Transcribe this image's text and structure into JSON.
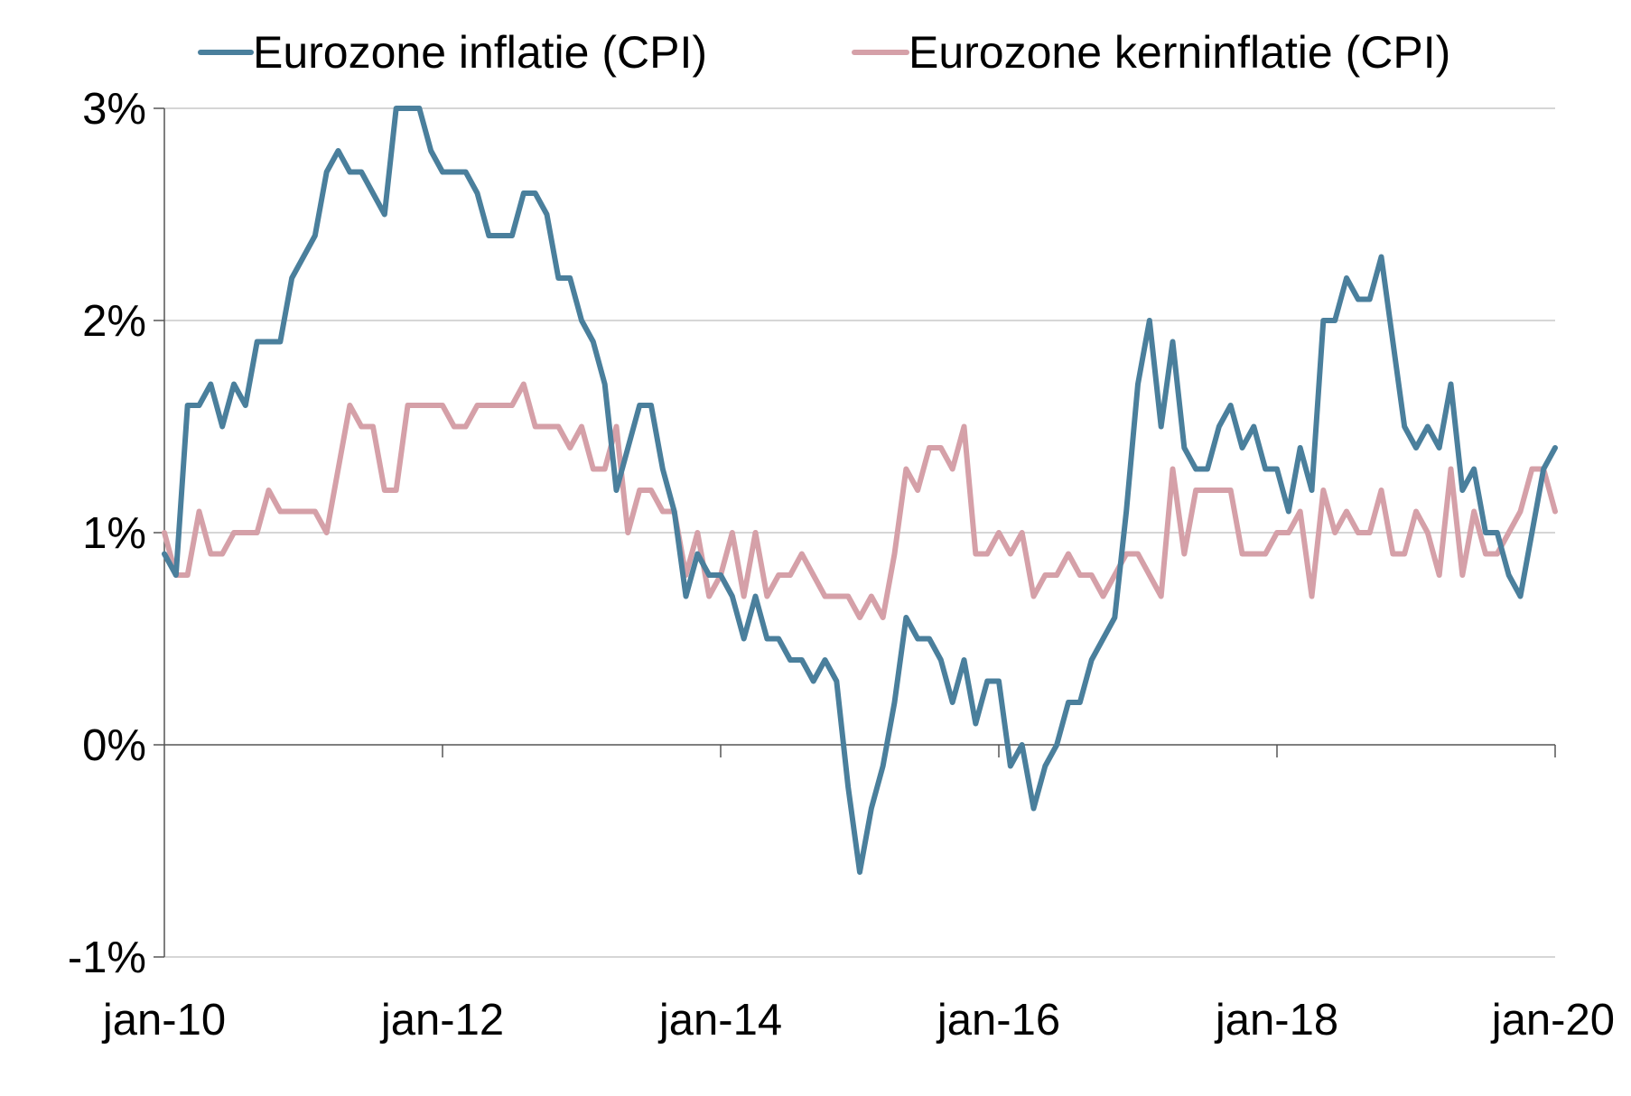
{
  "chart_data": {
    "type": "line",
    "title": "",
    "xlabel": "",
    "ylabel": "",
    "ylim": [
      -1,
      3
    ],
    "y_ticks": [
      {
        "value": 3,
        "label": "3%"
      },
      {
        "value": 2,
        "label": "2%"
      },
      {
        "value": 1,
        "label": "1%"
      },
      {
        "value": 0,
        "label": "0%"
      },
      {
        "value": -1,
        "label": "-1%"
      }
    ],
    "x_range": [
      "2010-01",
      "2020-01"
    ],
    "x_ticks": [
      {
        "value": "2010-01",
        "label": "jan-10"
      },
      {
        "value": "2012-01",
        "label": "jan-12"
      },
      {
        "value": "2014-01",
        "label": "jan-14"
      },
      {
        "value": "2016-01",
        "label": "jan-16"
      },
      {
        "value": "2018-01",
        "label": "jan-18"
      },
      {
        "value": "2020-01",
        "label": "jan-20"
      }
    ],
    "grid": "horizontal",
    "legend_position": "top",
    "series": [
      {
        "name": "Eurozone inflatie (CPI)",
        "color": "#4a7f9c",
        "points": [
          [
            "2010-01",
            0.9
          ],
          [
            "2010-02",
            0.8
          ],
          [
            "2010-03",
            1.6
          ],
          [
            "2010-04",
            1.6
          ],
          [
            "2010-05",
            1.7
          ],
          [
            "2010-06",
            1.5
          ],
          [
            "2010-07",
            1.7
          ],
          [
            "2010-08",
            1.6
          ],
          [
            "2010-09",
            1.9
          ],
          [
            "2010-10",
            1.9
          ],
          [
            "2010-11",
            1.9
          ],
          [
            "2010-12",
            2.2
          ],
          [
            "2011-01",
            2.3
          ],
          [
            "2011-02",
            2.4
          ],
          [
            "2011-03",
            2.7
          ],
          [
            "2011-04",
            2.8
          ],
          [
            "2011-05",
            2.7
          ],
          [
            "2011-06",
            2.7
          ],
          [
            "2011-07",
            2.6
          ],
          [
            "2011-08",
            2.5
          ],
          [
            "2011-09",
            3.0
          ],
          [
            "2011-10",
            3.0
          ],
          [
            "2011-11",
            3.0
          ],
          [
            "2011-12",
            2.8
          ],
          [
            "2012-01",
            2.7
          ],
          [
            "2012-02",
            2.7
          ],
          [
            "2012-03",
            2.7
          ],
          [
            "2012-04",
            2.6
          ],
          [
            "2012-05",
            2.4
          ],
          [
            "2012-06",
            2.4
          ],
          [
            "2012-07",
            2.4
          ],
          [
            "2012-08",
            2.6
          ],
          [
            "2012-09",
            2.6
          ],
          [
            "2012-10",
            2.5
          ],
          [
            "2012-11",
            2.2
          ],
          [
            "2012-12",
            2.2
          ],
          [
            "2013-01",
            2.0
          ],
          [
            "2013-02",
            1.9
          ],
          [
            "2013-03",
            1.7
          ],
          [
            "2013-04",
            1.2
          ],
          [
            "2013-05",
            1.4
          ],
          [
            "2013-06",
            1.6
          ],
          [
            "2013-07",
            1.6
          ],
          [
            "2013-08",
            1.3
          ],
          [
            "2013-09",
            1.1
          ],
          [
            "2013-10",
            0.7
          ],
          [
            "2013-11",
            0.9
          ],
          [
            "2013-12",
            0.8
          ],
          [
            "2014-01",
            0.8
          ],
          [
            "2014-02",
            0.7
          ],
          [
            "2014-03",
            0.5
          ],
          [
            "2014-04",
            0.7
          ],
          [
            "2014-05",
            0.5
          ],
          [
            "2014-06",
            0.5
          ],
          [
            "2014-07",
            0.4
          ],
          [
            "2014-08",
            0.4
          ],
          [
            "2014-09",
            0.3
          ],
          [
            "2014-10",
            0.4
          ],
          [
            "2014-11",
            0.3
          ],
          [
            "2014-12",
            -0.2
          ],
          [
            "2015-01",
            -0.6
          ],
          [
            "2015-02",
            -0.3
          ],
          [
            "2015-03",
            -0.1
          ],
          [
            "2015-04",
            0.2
          ],
          [
            "2015-05",
            0.6
          ],
          [
            "2015-06",
            0.5
          ],
          [
            "2015-07",
            0.5
          ],
          [
            "2015-08",
            0.4
          ],
          [
            "2015-09",
            0.2
          ],
          [
            "2015-10",
            0.4
          ],
          [
            "2015-11",
            0.1
          ],
          [
            "2015-12",
            0.3
          ],
          [
            "2016-01",
            0.3
          ],
          [
            "2016-02",
            -0.1
          ],
          [
            "2016-03",
            0.0
          ],
          [
            "2016-04",
            -0.3
          ],
          [
            "2016-05",
            -0.1
          ],
          [
            "2016-06",
            0.0
          ],
          [
            "2016-07",
            0.2
          ],
          [
            "2016-08",
            0.2
          ],
          [
            "2016-09",
            0.4
          ],
          [
            "2016-10",
            0.5
          ],
          [
            "2016-11",
            0.6
          ],
          [
            "2016-12",
            1.1
          ],
          [
            "2017-01",
            1.7
          ],
          [
            "2017-02",
            2.0
          ],
          [
            "2017-03",
            1.5
          ],
          [
            "2017-04",
            1.9
          ],
          [
            "2017-05",
            1.4
          ],
          [
            "2017-06",
            1.3
          ],
          [
            "2017-07",
            1.3
          ],
          [
            "2017-08",
            1.5
          ],
          [
            "2017-09",
            1.6
          ],
          [
            "2017-10",
            1.4
          ],
          [
            "2017-11",
            1.5
          ],
          [
            "2017-12",
            1.3
          ],
          [
            "2018-01",
            1.3
          ],
          [
            "2018-02",
            1.1
          ],
          [
            "2018-03",
            1.4
          ],
          [
            "2018-04",
            1.2
          ],
          [
            "2018-05",
            2.0
          ],
          [
            "2018-06",
            2.0
          ],
          [
            "2018-07",
            2.2
          ],
          [
            "2018-08",
            2.1
          ],
          [
            "2018-09",
            2.1
          ],
          [
            "2018-10",
            2.3
          ],
          [
            "2018-11",
            1.9
          ],
          [
            "2018-12",
            1.5
          ],
          [
            "2019-01",
            1.4
          ],
          [
            "2019-02",
            1.5
          ],
          [
            "2019-03",
            1.4
          ],
          [
            "2019-04",
            1.7
          ],
          [
            "2019-05",
            1.2
          ],
          [
            "2019-06",
            1.3
          ],
          [
            "2019-07",
            1.0
          ],
          [
            "2019-08",
            1.0
          ],
          [
            "2019-09",
            0.8
          ],
          [
            "2019-10",
            0.7
          ],
          [
            "2019-11",
            1.0
          ],
          [
            "2019-12",
            1.3
          ],
          [
            "2020-01",
            1.4
          ]
        ]
      },
      {
        "name": "Eurozone kerninflatie (CPI)",
        "color": "#d5a0a8",
        "points": [
          [
            "2010-01",
            1.0
          ],
          [
            "2010-02",
            0.8
          ],
          [
            "2010-03",
            0.8
          ],
          [
            "2010-04",
            1.1
          ],
          [
            "2010-05",
            0.9
          ],
          [
            "2010-06",
            0.9
          ],
          [
            "2010-07",
            1.0
          ],
          [
            "2010-08",
            1.0
          ],
          [
            "2010-09",
            1.0
          ],
          [
            "2010-10",
            1.2
          ],
          [
            "2010-11",
            1.1
          ],
          [
            "2010-12",
            1.1
          ],
          [
            "2011-01",
            1.1
          ],
          [
            "2011-02",
            1.1
          ],
          [
            "2011-03",
            1.0
          ],
          [
            "2011-04",
            1.3
          ],
          [
            "2011-05",
            1.6
          ],
          [
            "2011-06",
            1.5
          ],
          [
            "2011-07",
            1.5
          ],
          [
            "2011-08",
            1.2
          ],
          [
            "2011-09",
            1.2
          ],
          [
            "2011-10",
            1.6
          ],
          [
            "2011-11",
            1.6
          ],
          [
            "2011-12",
            1.6
          ],
          [
            "2012-01",
            1.6
          ],
          [
            "2012-02",
            1.5
          ],
          [
            "2012-03",
            1.5
          ],
          [
            "2012-04",
            1.6
          ],
          [
            "2012-05",
            1.6
          ],
          [
            "2012-06",
            1.6
          ],
          [
            "2012-07",
            1.6
          ],
          [
            "2012-08",
            1.7
          ],
          [
            "2012-09",
            1.5
          ],
          [
            "2012-10",
            1.5
          ],
          [
            "2012-11",
            1.5
          ],
          [
            "2012-12",
            1.4
          ],
          [
            "2013-01",
            1.5
          ],
          [
            "2013-02",
            1.3
          ],
          [
            "2013-03",
            1.3
          ],
          [
            "2013-04",
            1.5
          ],
          [
            "2013-05",
            1.0
          ],
          [
            "2013-06",
            1.2
          ],
          [
            "2013-07",
            1.2
          ],
          [
            "2013-08",
            1.1
          ],
          [
            "2013-09",
            1.1
          ],
          [
            "2013-10",
            0.8
          ],
          [
            "2013-11",
            1.0
          ],
          [
            "2013-12",
            0.7
          ],
          [
            "2014-01",
            0.8
          ],
          [
            "2014-02",
            1.0
          ],
          [
            "2014-03",
            0.7
          ],
          [
            "2014-04",
            1.0
          ],
          [
            "2014-05",
            0.7
          ],
          [
            "2014-06",
            0.8
          ],
          [
            "2014-07",
            0.8
          ],
          [
            "2014-08",
            0.9
          ],
          [
            "2014-09",
            0.8
          ],
          [
            "2014-10",
            0.7
          ],
          [
            "2014-11",
            0.7
          ],
          [
            "2014-12",
            0.7
          ],
          [
            "2015-01",
            0.6
          ],
          [
            "2015-02",
            0.7
          ],
          [
            "2015-03",
            0.6
          ],
          [
            "2015-04",
            0.9
          ],
          [
            "2015-05",
            1.3
          ],
          [
            "2015-06",
            1.2
          ],
          [
            "2015-07",
            1.4
          ],
          [
            "2015-08",
            1.4
          ],
          [
            "2015-09",
            1.3
          ],
          [
            "2015-10",
            1.5
          ],
          [
            "2015-11",
            0.9
          ],
          [
            "2015-12",
            0.9
          ],
          [
            "2016-01",
            1.0
          ],
          [
            "2016-02",
            0.9
          ],
          [
            "2016-03",
            1.0
          ],
          [
            "2016-04",
            0.7
          ],
          [
            "2016-05",
            0.8
          ],
          [
            "2016-06",
            0.8
          ],
          [
            "2016-07",
            0.9
          ],
          [
            "2016-08",
            0.8
          ],
          [
            "2016-09",
            0.8
          ],
          [
            "2016-10",
            0.7
          ],
          [
            "2016-11",
            0.8
          ],
          [
            "2016-12",
            0.9
          ],
          [
            "2017-01",
            0.9
          ],
          [
            "2017-02",
            0.8
          ],
          [
            "2017-03",
            0.7
          ],
          [
            "2017-04",
            1.3
          ],
          [
            "2017-05",
            0.9
          ],
          [
            "2017-06",
            1.2
          ],
          [
            "2017-07",
            1.2
          ],
          [
            "2017-08",
            1.2
          ],
          [
            "2017-09",
            1.2
          ],
          [
            "2017-10",
            0.9
          ],
          [
            "2017-11",
            0.9
          ],
          [
            "2017-12",
            0.9
          ],
          [
            "2018-01",
            1.0
          ],
          [
            "2018-02",
            1.0
          ],
          [
            "2018-03",
            1.1
          ],
          [
            "2018-04",
            0.7
          ],
          [
            "2018-05",
            1.2
          ],
          [
            "2018-06",
            1.0
          ],
          [
            "2018-07",
            1.1
          ],
          [
            "2018-08",
            1.0
          ],
          [
            "2018-09",
            1.0
          ],
          [
            "2018-10",
            1.2
          ],
          [
            "2018-11",
            0.9
          ],
          [
            "2018-12",
            0.9
          ],
          [
            "2019-01",
            1.1
          ],
          [
            "2019-02",
            1.0
          ],
          [
            "2019-03",
            0.8
          ],
          [
            "2019-04",
            1.3
          ],
          [
            "2019-05",
            0.8
          ],
          [
            "2019-06",
            1.1
          ],
          [
            "2019-07",
            0.9
          ],
          [
            "2019-08",
            0.9
          ],
          [
            "2019-09",
            1.0
          ],
          [
            "2019-10",
            1.1
          ],
          [
            "2019-11",
            1.3
          ],
          [
            "2019-12",
            1.3
          ],
          [
            "2020-01",
            1.1
          ]
        ]
      }
    ]
  }
}
